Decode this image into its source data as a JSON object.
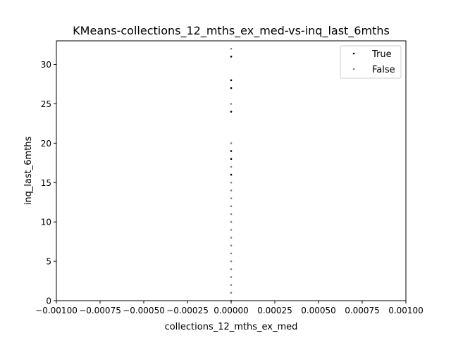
{
  "chart_data": {
    "type": "scatter",
    "title": "KMeans-collections_12_mths_ex_med-vs-inq_last_6mths",
    "xlabel": "collections_12_mths_ex_med",
    "ylabel": "inq_last_6mths",
    "xlim": [
      -0.001,
      0.001
    ],
    "ylim": [
      0,
      33
    ],
    "x_ticks": [
      -0.001,
      -0.00075,
      -0.0005,
      -0.00025,
      0,
      0.00025,
      0.0005,
      0.00075,
      0.001
    ],
    "x_tick_labels": [
      "−0.00100",
      "−0.00075",
      "−0.00050",
      "−0.00025",
      "0.00000",
      "0.00025",
      "0.00050",
      "0.00075",
      "0.00100"
    ],
    "y_ticks": [
      0,
      5,
      10,
      15,
      20,
      25,
      30
    ],
    "y_tick_labels": [
      "0",
      "5",
      "10",
      "15",
      "20",
      "25",
      "30"
    ],
    "grid": false,
    "legend_position": "top-right",
    "series": [
      {
        "name": "True",
        "color": "#000000",
        "points": [
          [
            0,
            16
          ],
          [
            0,
            18
          ],
          [
            0,
            19
          ],
          [
            0,
            24
          ],
          [
            0,
            27
          ],
          [
            0,
            28
          ],
          [
            0,
            31
          ]
        ]
      },
      {
        "name": "False",
        "color": "#808080",
        "points": [
          [
            0,
            0
          ],
          [
            0,
            1
          ],
          [
            0,
            2
          ],
          [
            0,
            3
          ],
          [
            0,
            4
          ],
          [
            0,
            5
          ],
          [
            0,
            6
          ],
          [
            0,
            7
          ],
          [
            0,
            8
          ],
          [
            0,
            9
          ],
          [
            0,
            10
          ],
          [
            0,
            11
          ],
          [
            0,
            12
          ],
          [
            0,
            13
          ],
          [
            0,
            14
          ],
          [
            0,
            15
          ],
          [
            0,
            17
          ],
          [
            0,
            20
          ],
          [
            0,
            25
          ],
          [
            0,
            32
          ]
        ]
      }
    ]
  }
}
